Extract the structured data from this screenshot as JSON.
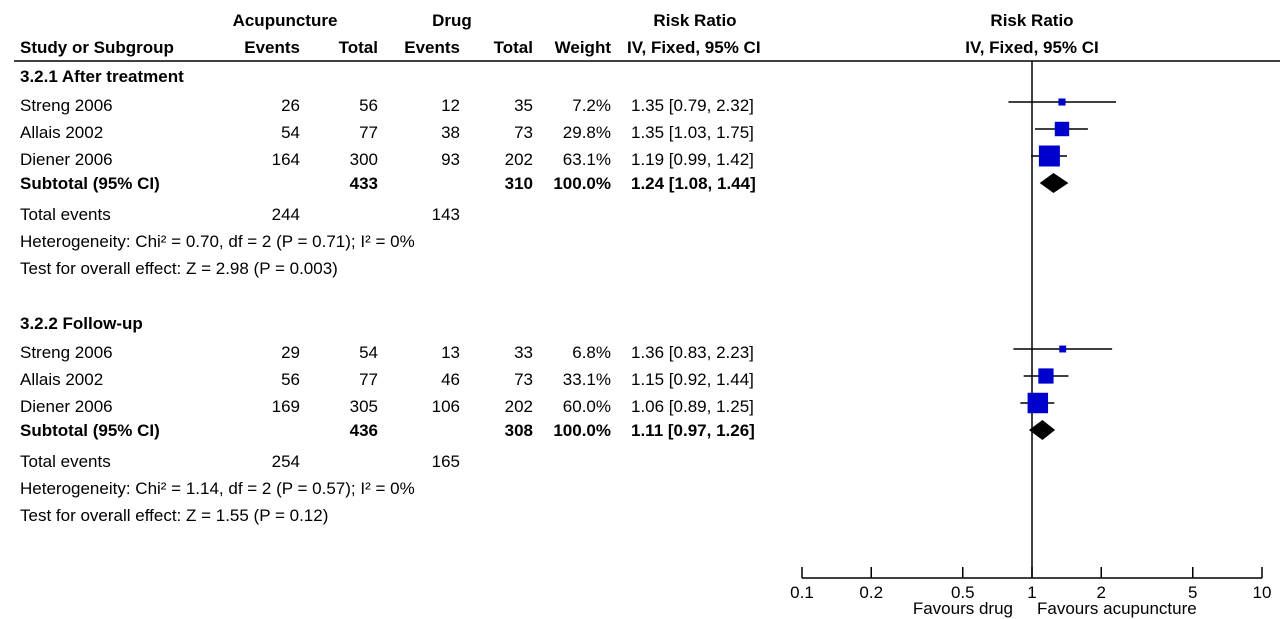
{
  "header": {
    "group1": "Acupuncture",
    "group2": "Drug",
    "rr_top": "Risk Ratio",
    "plot_top": "Risk Ratio",
    "study": "Study or Subgroup",
    "events": "Events",
    "total": "Total",
    "weight": "Weight",
    "method": "IV, Fixed, 95% CI",
    "plot_method": "IV, Fixed, 95% CI"
  },
  "subgroups": [
    {
      "title": "3.2.1 After treatment",
      "studies": [
        {
          "name": "Streng 2006",
          "e1": "26",
          "t1": "56",
          "e2": "12",
          "t2": "35",
          "weight": "7.2%",
          "ci": "1.35 [0.79, 2.32]"
        },
        {
          "name": "Allais 2002",
          "e1": "54",
          "t1": "77",
          "e2": "38",
          "t2": "73",
          "weight": "29.8%",
          "ci": "1.35 [1.03, 1.75]"
        },
        {
          "name": "Diener 2006",
          "e1": "164",
          "t1": "300",
          "e2": "93",
          "t2": "202",
          "weight": "63.1%",
          "ci": "1.19 [0.99, 1.42]"
        }
      ],
      "subtotal": {
        "label": "Subtotal (95% CI)",
        "t1": "433",
        "t2": "310",
        "weight": "100.0%",
        "ci": "1.24 [1.08, 1.44]"
      },
      "total_events": {
        "label": "Total events",
        "e1": "244",
        "e2": "143"
      },
      "heterogeneity": "Heterogeneity: Chi² = 0.70, df = 2 (P = 0.71); I² = 0%",
      "overall": "Test for overall effect: Z = 2.98 (P = 0.003)"
    },
    {
      "title": "3.2.2 Follow-up",
      "studies": [
        {
          "name": "Streng 2006",
          "e1": "29",
          "t1": "54",
          "e2": "13",
          "t2": "33",
          "weight": "6.8%",
          "ci": "1.36 [0.83, 2.23]"
        },
        {
          "name": "Allais 2002",
          "e1": "56",
          "t1": "77",
          "e2": "46",
          "t2": "73",
          "weight": "33.1%",
          "ci": "1.15 [0.92, 1.44]"
        },
        {
          "name": "Diener 2006",
          "e1": "169",
          "t1": "305",
          "e2": "106",
          "t2": "202",
          "weight": "60.0%",
          "ci": "1.06 [0.89, 1.25]"
        }
      ],
      "subtotal": {
        "label": "Subtotal (95% CI)",
        "t1": "436",
        "t2": "308",
        "weight": "100.0%",
        "ci": "1.11 [0.97, 1.26]"
      },
      "total_events": {
        "label": "Total events",
        "e1": "254",
        "e2": "165"
      },
      "heterogeneity": "Heterogeneity: Chi² = 1.14, df = 2 (P = 0.57); I² = 0%",
      "overall": "Test for overall effect: Z = 1.55 (P = 0.12)"
    }
  ],
  "axis": {
    "favours_left": "Favours drug",
    "favours_right": "Favours acupuncture"
  },
  "chart_data": {
    "type": "forest",
    "scale": "log",
    "xlim": [
      0.1,
      10
    ],
    "ticks": [
      0.1,
      0.2,
      0.5,
      1,
      2,
      5,
      10
    ],
    "tick_labels": [
      "0.1",
      "0.2",
      "0.5",
      "1",
      "2",
      "5",
      "10"
    ],
    "reference": 1,
    "colors": {
      "study": "#0000cc",
      "summary": "#000000"
    },
    "studies": [
      {
        "subgroup": "3.2.1 After treatment",
        "name": "Streng 2006",
        "rr": 1.35,
        "low": 0.79,
        "high": 2.32,
        "weight": 7.2
      },
      {
        "subgroup": "3.2.1 After treatment",
        "name": "Allais 2002",
        "rr": 1.35,
        "low": 1.03,
        "high": 1.75,
        "weight": 29.8
      },
      {
        "subgroup": "3.2.1 After treatment",
        "name": "Diener 2006",
        "rr": 1.19,
        "low": 0.99,
        "high": 1.42,
        "weight": 63.1
      },
      {
        "subgroup": "3.2.2 Follow-up",
        "name": "Streng 2006",
        "rr": 1.36,
        "low": 0.83,
        "high": 2.23,
        "weight": 6.8
      },
      {
        "subgroup": "3.2.2 Follow-up",
        "name": "Allais 2002",
        "rr": 1.15,
        "low": 0.92,
        "high": 1.44,
        "weight": 33.1
      },
      {
        "subgroup": "3.2.2 Follow-up",
        "name": "Diener 2006",
        "rr": 1.06,
        "low": 0.89,
        "high": 1.25,
        "weight": 60.0
      }
    ],
    "subtotals": [
      {
        "subgroup": "3.2.1 After treatment",
        "rr": 1.24,
        "low": 1.08,
        "high": 1.44
      },
      {
        "subgroup": "3.2.2 Follow-up",
        "rr": 1.11,
        "low": 0.97,
        "high": 1.26
      }
    ]
  }
}
